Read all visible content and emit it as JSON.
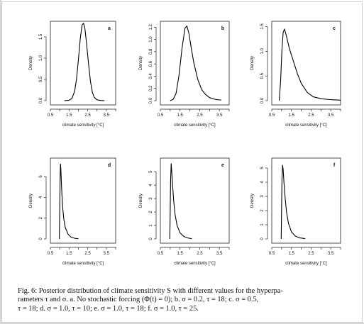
{
  "figure": {
    "caption_lines": [
      "Fig. 6: Posterior distribution of climate sensitivity S with different values for the hyperpa-",
      "rameters τ and σ.  a.  No stochastic forcing (Φ(t) = 0); b.  σ = 0.2, τ = 18; c.  σ = 0.5,",
      "τ = 18; d. σ = 1.0, τ = 10; e. σ = 1.0, τ = 18; f. σ = 1.0, τ = 25."
    ]
  },
  "chart_data": [
    {
      "type": "line",
      "panel": "a",
      "xlabel": "climate sensitivity [°C]",
      "ylabel": "Density",
      "xlim": [
        0.5,
        4.0
      ],
      "ylim": [
        0,
        1.8
      ],
      "xticks": [
        "0.5",
        "1.5",
        "2.5",
        "3.5"
      ],
      "yticks": [
        "0.0",
        "0.5",
        "1.0",
        "1.5"
      ],
      "x": [
        1.25,
        1.5,
        1.65,
        1.8,
        1.9,
        2.0,
        2.1,
        2.2,
        2.28,
        2.35,
        2.45,
        2.55,
        2.65,
        2.75,
        2.85,
        3.0,
        3.2,
        3.4
      ],
      "y": [
        0,
        0.01,
        0.05,
        0.22,
        0.5,
        0.95,
        1.45,
        1.78,
        1.82,
        1.7,
        1.3,
        0.85,
        0.45,
        0.2,
        0.08,
        0.02,
        0.005,
        0
      ]
    },
    {
      "type": "line",
      "panel": "b",
      "xlabel": "climate sensitivity [°C]",
      "ylabel": "Density",
      "xlim": [
        0.5,
        4.0
      ],
      "ylim": [
        0,
        1.25
      ],
      "xticks": [
        "0.5",
        "1.5",
        "2.5",
        "3.5"
      ],
      "yticks": [
        "0.0",
        "0.2",
        "0.4",
        "0.6",
        "0.8",
        "1.0",
        "1.2"
      ],
      "x": [
        1.0,
        1.15,
        1.3,
        1.45,
        1.6,
        1.75,
        1.85,
        1.95,
        2.05,
        2.2,
        2.4,
        2.6,
        2.8,
        3.0,
        3.3,
        3.6
      ],
      "y": [
        0,
        0.02,
        0.12,
        0.42,
        0.85,
        1.18,
        1.22,
        1.1,
        0.9,
        0.62,
        0.35,
        0.18,
        0.1,
        0.05,
        0.02,
        0.01
      ]
    },
    {
      "type": "line",
      "panel": "c",
      "xlabel": "climate sensitivity [°C]",
      "ylabel": "Density",
      "xlim": [
        0.5,
        4.0
      ],
      "ylim": [
        0,
        1.55
      ],
      "xticks": [
        "0.5",
        "1.5",
        "2.5",
        "3.5"
      ],
      "yticks": [
        "0.0",
        "0.5",
        "1.0",
        "1.5"
      ],
      "x": [
        0.88,
        0.95,
        1.02,
        1.08,
        1.15,
        1.25,
        1.4,
        1.6,
        1.8,
        2.0,
        2.3,
        2.6,
        3.0,
        3.5,
        4.0
      ],
      "y": [
        0,
        0.4,
        1.05,
        1.38,
        1.45,
        1.3,
        1.05,
        0.8,
        0.55,
        0.35,
        0.17,
        0.08,
        0.04,
        0.02,
        0.01
      ]
    },
    {
      "type": "line",
      "panel": "d",
      "xlabel": "climate sensitivity [°C]",
      "ylabel": "Density",
      "xlim": [
        0.5,
        4.0
      ],
      "ylim": [
        0,
        7.5
      ],
      "xticks": [
        "0.5",
        "1.5",
        "2.5",
        "3.5"
      ],
      "yticks": [
        "0",
        "2",
        "4",
        "6"
      ],
      "x": [
        0.98,
        1.0,
        1.02,
        1.04,
        1.06,
        1.1,
        1.15,
        1.22,
        1.3,
        1.45,
        1.6,
        1.8,
        2.0
      ],
      "y": [
        0,
        2.5,
        5.5,
        7.2,
        6.8,
        5.0,
        3.2,
        1.9,
        1.1,
        0.45,
        0.18,
        0.06,
        0.02
      ]
    },
    {
      "type": "line",
      "panel": "e",
      "xlabel": "climate sensitivity [°C]",
      "ylabel": "Density",
      "xlim": [
        0.5,
        4.0
      ],
      "ylim": [
        0,
        5.8
      ],
      "xticks": [
        "0.5",
        "1.5",
        "2.5",
        "3.5"
      ],
      "yticks": [
        "0",
        "1",
        "2",
        "3",
        "4",
        "5"
      ],
      "x": [
        0.98,
        1.0,
        1.02,
        1.05,
        1.08,
        1.12,
        1.18,
        1.25,
        1.35,
        1.5,
        1.7,
        1.9,
        2.1
      ],
      "y": [
        0,
        2.0,
        4.3,
        5.6,
        5.0,
        4.0,
        2.8,
        1.8,
        1.0,
        0.45,
        0.18,
        0.07,
        0.02
      ]
    },
    {
      "type": "line",
      "panel": "f",
      "xlabel": "climate sensitivity [°C]",
      "ylabel": "Density",
      "xlim": [
        0.5,
        4.0
      ],
      "ylim": [
        0,
        5.5
      ],
      "xticks": [
        "0.5",
        "1.5",
        "2.5",
        "3.5"
      ],
      "yticks": [
        "0",
        "1",
        "2",
        "3",
        "4",
        "5"
      ],
      "x": [
        0.98,
        1.0,
        1.02,
        1.05,
        1.08,
        1.12,
        1.18,
        1.25,
        1.35,
        1.5,
        1.7,
        1.9,
        2.2
      ],
      "y": [
        0,
        2.2,
        4.2,
        5.2,
        4.9,
        4.0,
        2.9,
        1.9,
        1.1,
        0.5,
        0.2,
        0.08,
        0.02
      ]
    }
  ]
}
